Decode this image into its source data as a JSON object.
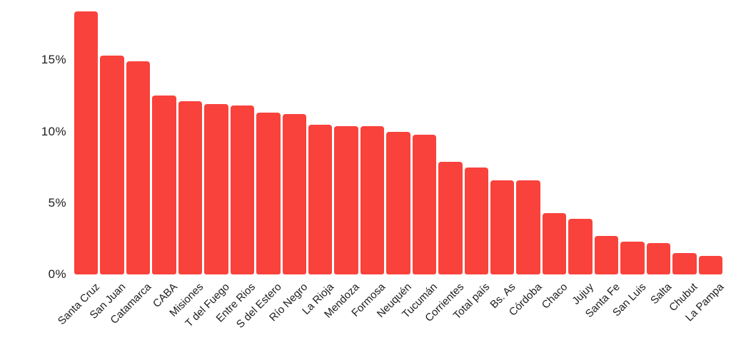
{
  "page": {
    "background": "#ffffff"
  },
  "chart_data": {
    "type": "bar",
    "title": "",
    "xlabel": "",
    "ylabel": "",
    "unit": "%",
    "categories": [
      "Santa Cruz",
      "San Juan",
      "Catamarca",
      "CABA",
      "Misiones",
      "T del Fuego",
      "Entre Rios",
      "S del Estero",
      "Río Negro",
      "La Rioja",
      "Mendoza",
      "Formosa",
      "Neuquén",
      "Tucumán",
      "Corrientes",
      "Total país",
      "Bs. As",
      "Córdoba",
      "Chaco",
      "Jujuy",
      "Santa Fe",
      "San Luis",
      "Salta",
      "Chubut",
      "La Pampa"
    ],
    "values": [
      18.4,
      15.3,
      14.9,
      12.5,
      12.1,
      11.9,
      11.8,
      11.3,
      11.2,
      10.5,
      10.4,
      10.4,
      10.0,
      9.8,
      7.9,
      7.5,
      6.6,
      6.6,
      4.3,
      3.9,
      2.7,
      2.3,
      2.2,
      1.5,
      1.3
    ],
    "ytick_values": [
      0,
      5,
      10,
      15
    ],
    "ytick_labels": [
      "0%",
      "5%",
      "10%",
      "15%"
    ],
    "ylim": [
      0,
      19.2
    ],
    "grid": false,
    "legend": "none",
    "x_labels_rotation_deg": 45,
    "bar_color": "#f9423c",
    "text_color": "#1d1d1d"
  }
}
